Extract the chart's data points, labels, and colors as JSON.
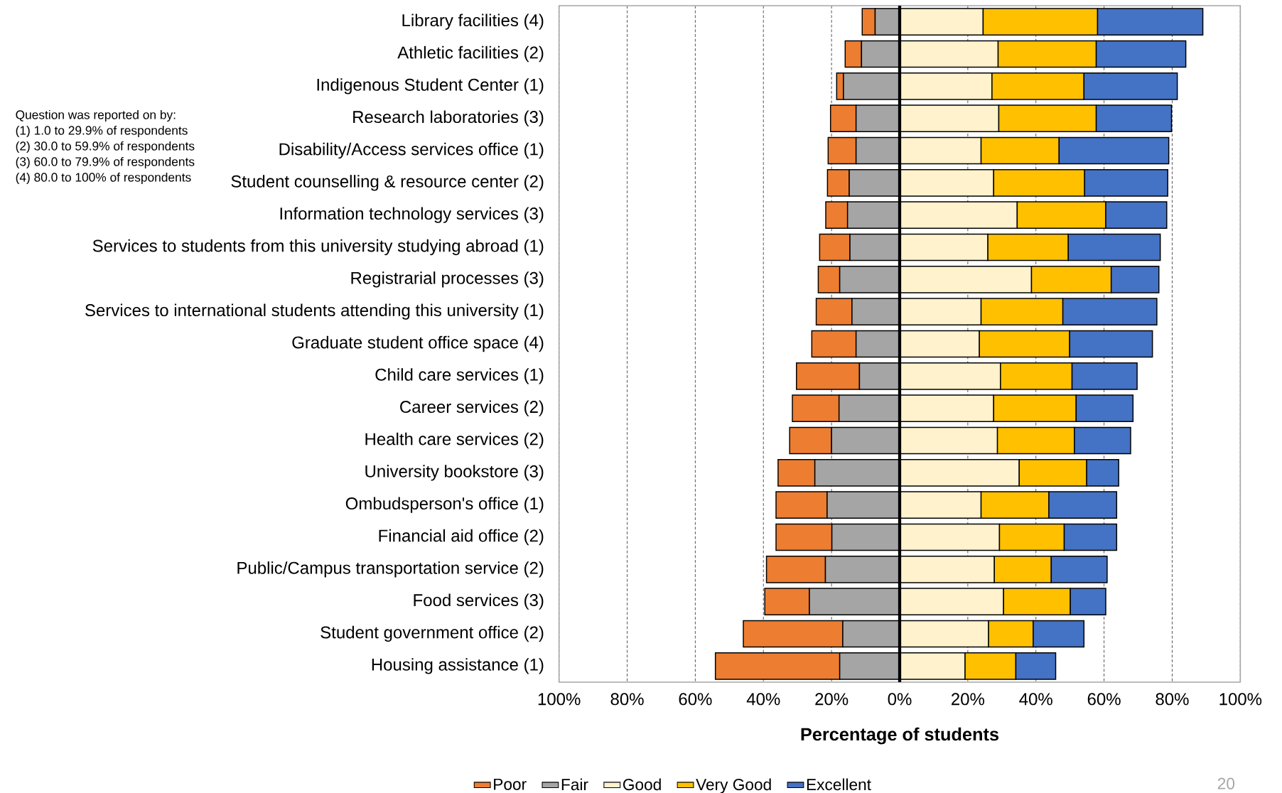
{
  "chart_data": {
    "type": "bar",
    "orientation": "horizontal",
    "stacked": true,
    "xlabel": "Percentage of students",
    "categories": [
      "Library facilities (4)",
      "Athletic facilities (2)",
      "Indigenous Student Center (1)",
      "Research laboratories (3)",
      "Disability/Access services office (1)",
      "Student counselling & resource center (2)",
      "Information technology services (3)",
      "Services to students from this university studying abroad (1)",
      "Registrarial processes (3)",
      "Services to international students attending this university (1)",
      "Graduate student office space (4)",
      "Child care services (1)",
      "Career services (2)",
      "Health care services (2)",
      "University bookstore (3)",
      "Ombudsperson's office (1)",
      "Financial aid office (2)",
      "Public/Campus transportation service (2)",
      "Food services (3)",
      "Student government office (2)",
      "Housing assistance (1)"
    ],
    "series": [
      {
        "name": "Poor",
        "color": "#ed7d31",
        "values": [
          -3.8,
          -4.8,
          -2.0,
          -7.5,
          -8.2,
          -6.4,
          -6.4,
          -8.9,
          -6.3,
          -10.5,
          -13.0,
          -18.5,
          -13.7,
          -12.3,
          -10.8,
          -15.0,
          -16.4,
          -17.3,
          -13.1,
          -29.2,
          -36.5
        ]
      },
      {
        "name": "Fair",
        "color": "#a5a5a5",
        "values": [
          -7.2,
          -11.2,
          -16.5,
          -12.8,
          -12.8,
          -14.8,
          -15.3,
          -14.6,
          -17.6,
          -14.0,
          -12.8,
          -11.8,
          -17.8,
          -20.0,
          -24.9,
          -21.3,
          -19.9,
          -21.8,
          -26.5,
          -16.7,
          -17.6
        ]
      },
      {
        "name": "Good",
        "color": "#fff2cc",
        "values": [
          24.5,
          28.9,
          27.1,
          29.1,
          23.9,
          27.6,
          34.5,
          25.9,
          38.7,
          23.9,
          23.4,
          29.6,
          27.6,
          28.7,
          35.1,
          23.9,
          29.3,
          27.8,
          30.5,
          26.1,
          19.2
        ]
      },
      {
        "name": "Very Good",
        "color": "#ffc000",
        "values": [
          33.6,
          28.8,
          27.0,
          28.6,
          22.9,
          26.7,
          26.0,
          23.6,
          23.4,
          24.0,
          26.5,
          21.0,
          24.2,
          22.6,
          19.8,
          19.9,
          19.0,
          16.7,
          19.6,
          13.1,
          14.9
        ]
      },
      {
        "name": "Excellent",
        "color": "#4472c4",
        "values": [
          30.9,
          26.3,
          27.4,
          22.1,
          32.2,
          24.4,
          17.9,
          27.0,
          14.0,
          27.6,
          24.3,
          19.1,
          16.7,
          16.5,
          9.4,
          19.9,
          15.4,
          16.4,
          10.4,
          14.9,
          11.7
        ]
      }
    ],
    "xlim": [
      -100,
      100
    ],
    "xticks": [
      {
        "value": -100,
        "label": "100%"
      },
      {
        "value": -80,
        "label": "80%"
      },
      {
        "value": -60,
        "label": "60%"
      },
      {
        "value": -40,
        "label": "40%"
      },
      {
        "value": -20,
        "label": "20%"
      },
      {
        "value": 0,
        "label": "0%"
      },
      {
        "value": 20,
        "label": "20%"
      },
      {
        "value": 40,
        "label": "40%"
      },
      {
        "value": 60,
        "label": "60%"
      },
      {
        "value": 80,
        "label": "80%"
      },
      {
        "value": 100,
        "label": "100%"
      }
    ],
    "grid": "x",
    "legend": "bottom",
    "ref_lines": [
      {
        "axis": "x",
        "value": 0
      }
    ],
    "annotations": [
      "Question was reported on by:",
      "(1) 1.0 to 29.9% of respondents",
      "(2) 30.0 to 59.9% of respondents",
      "(3) 60.0 to 79.9% of respondents",
      "(4) 80.0 to 100% of respondents",
      "20"
    ]
  }
}
